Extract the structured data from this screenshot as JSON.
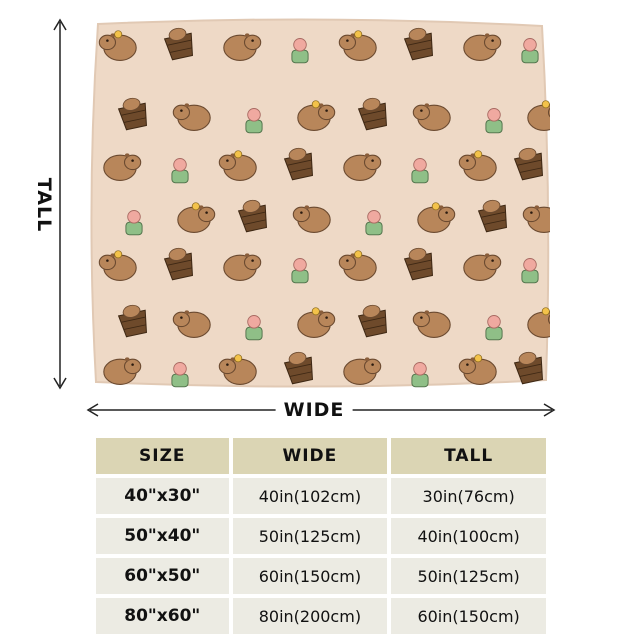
{
  "dimension_labels": {
    "tall": "TALL",
    "wide": "WIDE"
  },
  "colors": {
    "blanket": "#eed9c6",
    "capybara": "#b8865a",
    "bucket": "#6e4a2b",
    "header_row": "#dbd5b4",
    "body_row": "#ecebe3"
  },
  "size_table": {
    "headers": [
      "SIZE",
      "WIDE",
      "TALL"
    ],
    "rows": [
      {
        "size": "40\"x30\"",
        "wide": "40in(102cm)",
        "tall": "30in(76cm)"
      },
      {
        "size": "50\"x40\"",
        "wide": "50in(125cm)",
        "tall": "40in(100cm)"
      },
      {
        "size": "60\"x50\"",
        "wide": "60in(150cm)",
        "tall": "50in(125cm)"
      },
      {
        "size": "80\"x60\"",
        "wide": "80in(200cm)",
        "tall": "60in(150cm)"
      }
    ]
  }
}
